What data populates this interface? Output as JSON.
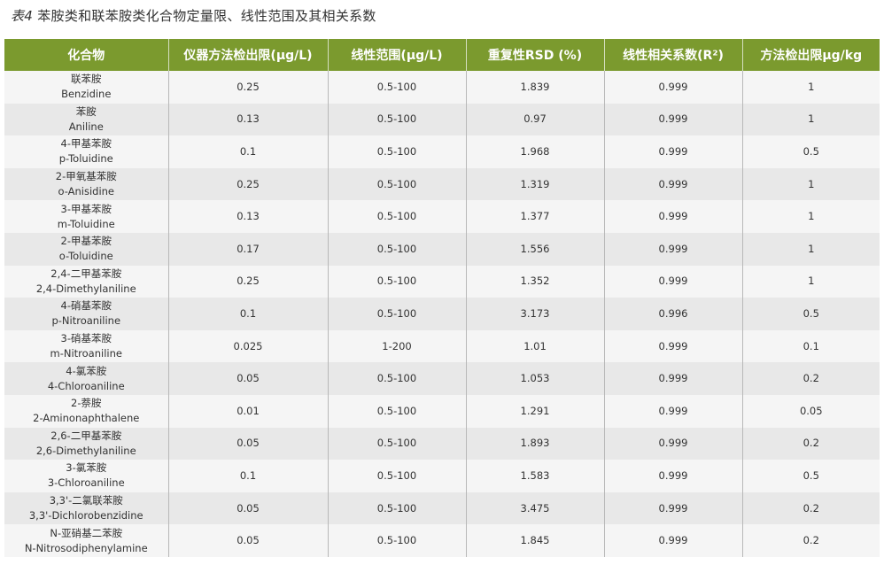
{
  "title": {
    "prefix": "表4",
    "text": "苯胺类和联苯胺类化合物定量限、线性范围及其相关系数"
  },
  "table": {
    "header_color": "#7b9a2e",
    "columns": [
      "化合物",
      "仪器方法检出限(μg/L)",
      "线性范围(μg/L)",
      "重复性RSD (%)",
      "线性相关系数(R²)",
      "方法检出限μg/kg"
    ],
    "rows": [
      {
        "cn": "联苯胺",
        "en": "Benzidine",
        "lod": "0.25",
        "range": "0.5-100",
        "rsd": "1.839",
        "r2": "0.999",
        "mlod": "1"
      },
      {
        "cn": "苯胺",
        "en": "Aniline",
        "lod": "0.13",
        "range": "0.5-100",
        "rsd": "0.97",
        "r2": "0.999",
        "mlod": "1"
      },
      {
        "cn": "4-甲基苯胺",
        "en": "p-Toluidine",
        "lod": "0.1",
        "range": "0.5-100",
        "rsd": "1.968",
        "r2": "0.999",
        "mlod": "0.5"
      },
      {
        "cn": "2-甲氧基苯胺",
        "en": "o-Anisidine",
        "lod": "0.25",
        "range": "0.5-100",
        "rsd": "1.319",
        "r2": "0.999",
        "mlod": "1"
      },
      {
        "cn": "3-甲基苯胺",
        "en": "m-Toluidine",
        "lod": "0.13",
        "range": "0.5-100",
        "rsd": "1.377",
        "r2": "0.999",
        "mlod": "1"
      },
      {
        "cn": "2-甲基苯胺",
        "en": "o-Toluidine",
        "lod": "0.17",
        "range": "0.5-100",
        "rsd": "1.556",
        "r2": "0.999",
        "mlod": "1"
      },
      {
        "cn": "2,4-二甲基苯胺",
        "en": "2,4-Dimethylaniline",
        "lod": "0.25",
        "range": "0.5-100",
        "rsd": "1.352",
        "r2": "0.999",
        "mlod": "1"
      },
      {
        "cn": "4-硝基苯胺",
        "en": "p-Nitroaniline",
        "lod": "0.1",
        "range": "0.5-100",
        "rsd": "3.173",
        "r2": "0.996",
        "mlod": "0.5"
      },
      {
        "cn": "3-硝基苯胺",
        "en": "m-Nitroaniline",
        "lod": "0.025",
        "range": "1-200",
        "rsd": "1.01",
        "r2": "0.999",
        "mlod": "0.1"
      },
      {
        "cn": "4-氯苯胺",
        "en": "4-Chloroaniline",
        "lod": "0.05",
        "range": "0.5-100",
        "rsd": "1.053",
        "r2": "0.999",
        "mlod": "0.2"
      },
      {
        "cn": "2-萘胺",
        "en": "2-Aminonaphthalene",
        "lod": "0.01",
        "range": "0.5-100",
        "rsd": "1.291",
        "r2": "0.999",
        "mlod": "0.05"
      },
      {
        "cn": "2,6-二甲基苯胺",
        "en": "2,6-Dimethylaniline",
        "lod": "0.05",
        "range": "0.5-100",
        "rsd": "1.893",
        "r2": "0.999",
        "mlod": "0.2"
      },
      {
        "cn": "3-氯苯胺",
        "en": "3-Chloroaniline",
        "lod": "0.1",
        "range": "0.5-100",
        "rsd": "1.583",
        "r2": "0.999",
        "mlod": "0.5"
      },
      {
        "cn": "3,3'-二氯联苯胺",
        "en": "3,3'-Dichlorobenzidine",
        "lod": "0.05",
        "range": "0.5-100",
        "rsd": "3.475",
        "r2": "0.999",
        "mlod": "0.2"
      },
      {
        "cn": "N-亚硝基二苯胺",
        "en": "N-Nitrosodiphenylamine",
        "lod": "0.05",
        "range": "0.5-100",
        "rsd": "1.845",
        "r2": "0.999",
        "mlod": "0.2"
      }
    ]
  }
}
